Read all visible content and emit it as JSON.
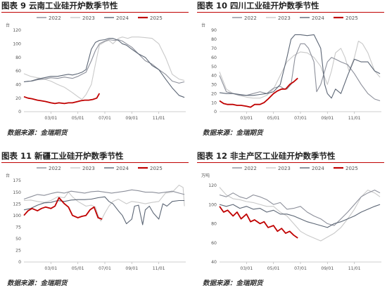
{
  "source_label": "数据来源：金瑞期货",
  "colors": {
    "y2022": "#8c8f9a",
    "y2023": "#c9c9c9",
    "y2024": "#5c6675",
    "y2025": "#c00000",
    "title_rule": "#c00000"
  },
  "chart_data": [
    {
      "type": "line",
      "title_prefix": "图表 9",
      "title": "云南工业硅开炉数季节性",
      "yunit": "台",
      "ylim": [
        0,
        120
      ],
      "yticks": [
        0,
        20,
        40,
        60,
        80,
        100,
        120
      ],
      "xticks": [
        "03/01",
        "05/01",
        "07/01",
        "09/01",
        "11/01"
      ],
      "series": [
        {
          "name": "2022",
          "x": [
            0,
            0.3,
            0.6,
            1.0,
            1.5,
            2.0,
            2.5,
            3.0,
            3.3,
            3.6,
            4.0,
            4.3,
            4.6,
            5.0,
            5.3,
            5.6,
            6.0,
            6.3,
            6.7,
            7.0,
            7.3,
            7.6,
            8.0,
            8.5,
            9.0,
            9.5,
            10.0,
            10.5,
            11.0,
            11.5,
            11.9
          ],
          "y": [
            44,
            45,
            45,
            47,
            48,
            50,
            49,
            51,
            50,
            49,
            52,
            55,
            58,
            75,
            90,
            100,
            104,
            106,
            105,
            106,
            104,
            100,
            95,
            85,
            75,
            70,
            62,
            55,
            45,
            42,
            44
          ]
        },
        {
          "name": "2023",
          "x": [
            0,
            0.5,
            1.0,
            1.5,
            2.0,
            2.5,
            3.0,
            3.3,
            3.6,
            4.0,
            4.3,
            4.6,
            5.0,
            5.3,
            5.6,
            6.0,
            6.3,
            6.6,
            7.0,
            7.3,
            7.7,
            8.0,
            8.5,
            9.0,
            9.5,
            10.0,
            10.5,
            11.0,
            11.5,
            11.9
          ],
          "y": [
            56,
            52,
            50,
            48,
            45,
            40,
            36,
            32,
            28,
            22,
            18,
            25,
            40,
            70,
            98,
            103,
            105,
            100,
            108,
            110,
            108,
            110,
            110,
            109,
            108,
            100,
            80,
            55,
            48,
            46
          ]
        },
        {
          "name": "2024",
          "x": [
            0,
            0.5,
            1.0,
            1.5,
            2.0,
            2.5,
            3.0,
            3.3,
            3.6,
            4.0,
            4.3,
            4.6,
            5.0,
            5.3,
            5.6,
            6.0,
            6.3,
            6.6,
            7.0,
            7.3,
            7.6,
            8.0,
            8.5,
            9.0,
            9.5,
            10.0,
            10.5,
            11.0,
            11.5,
            11.9
          ],
          "y": [
            44,
            45,
            48,
            50,
            52,
            52,
            54,
            55,
            54,
            56,
            58,
            62,
            92,
            102,
            105,
            106,
            108,
            108,
            105,
            100,
            98,
            92,
            85,
            80,
            68,
            62,
            48,
            35,
            24,
            21
          ]
        },
        {
          "name": "2025",
          "x": [
            0,
            0.3,
            0.6,
            1.0,
            1.3,
            1.6,
            2.0,
            2.3,
            2.6,
            3.0,
            3.3,
            3.6,
            4.0,
            4.2,
            4.5,
            4.8,
            5.1,
            5.4,
            5.6
          ],
          "y": [
            22,
            20,
            19,
            17,
            16,
            15,
            13,
            12,
            13,
            12,
            13,
            13,
            15,
            16,
            17,
            17,
            18,
            20,
            27
          ]
        }
      ]
    },
    {
      "type": "line",
      "title_prefix": "图表 10",
      "title": "四川工业硅开炉数季节性",
      "yunit": "台",
      "ylim": [
        0,
        90
      ],
      "yticks": [
        0,
        10,
        20,
        30,
        40,
        50,
        60,
        70,
        80,
        90
      ],
      "xticks": [
        "03/01",
        "05/01",
        "07/01",
        "09/01",
        "11/01"
      ],
      "series": [
        {
          "name": "2022",
          "x": [
            0,
            0.5,
            1.0,
            1.5,
            2.0,
            2.5,
            3.0,
            3.5,
            4.0,
            4.5,
            4.8,
            5.0,
            5.3,
            5.6,
            6.0,
            6.3,
            6.6,
            7.0,
            7.2,
            7.5,
            7.8,
            8.0,
            8.3,
            8.6,
            9.0,
            9.5,
            10.0,
            10.5,
            11.0,
            11.5,
            11.9
          ],
          "y": [
            40,
            22,
            20,
            18,
            18,
            20,
            22,
            20,
            26,
            28,
            25,
            25,
            30,
            60,
            75,
            75,
            70,
            55,
            22,
            30,
            45,
            55,
            60,
            58,
            55,
            52,
            42,
            30,
            20,
            14,
            12
          ]
        },
        {
          "name": "2023",
          "x": [
            0,
            0.5,
            1.0,
            1.5,
            2.0,
            2.5,
            3.0,
            3.5,
            4.0,
            4.5,
            5.0,
            5.5,
            6.0,
            6.5,
            7.0,
            7.5,
            8.0,
            8.3,
            8.6,
            9.0,
            9.3,
            9.6,
            10.0,
            10.3,
            10.6,
            11.0,
            11.5,
            11.9
          ],
          "y": [
            44,
            25,
            20,
            18,
            16,
            15,
            15,
            18,
            25,
            40,
            55,
            62,
            66,
            65,
            60,
            50,
            30,
            45,
            65,
            70,
            60,
            45,
            60,
            78,
            75,
            65,
            45,
            38
          ]
        },
        {
          "name": "2024",
          "x": [
            0,
            0.5,
            1.0,
            1.5,
            2.0,
            2.5,
            3.0,
            3.5,
            4.0,
            4.5,
            5.0,
            5.3,
            5.6,
            6.0,
            6.5,
            7.0,
            7.5,
            7.8,
            8.0,
            8.3,
            8.6,
            9.0,
            9.5,
            10.0,
            10.5,
            11.0,
            11.5,
            11.9
          ],
          "y": [
            21,
            20,
            20,
            19,
            18,
            18,
            19,
            20,
            22,
            30,
            60,
            80,
            85,
            85,
            84,
            85,
            70,
            30,
            20,
            15,
            25,
            20,
            40,
            58,
            55,
            55,
            45,
            42
          ]
        },
        {
          "name": "2025",
          "x": [
            0,
            0.3,
            0.6,
            1.0,
            1.3,
            1.6,
            2.0,
            2.3,
            2.6,
            3.0,
            3.3,
            3.6,
            4.0,
            4.3,
            4.6,
            4.9,
            5.2,
            5.5,
            5.8
          ],
          "y": [
            12,
            9,
            8,
            8,
            7,
            7,
            6,
            5,
            8,
            8,
            10,
            14,
            20,
            23,
            25,
            25,
            30,
            33,
            37
          ]
        }
      ]
    },
    {
      "type": "line",
      "title_prefix": "图表 11",
      "title": "新疆工业硅开炉数季节性",
      "yunit": "台",
      "ylim": [
        0,
        175
      ],
      "yticks": [
        0,
        25,
        50,
        75,
        100,
        125,
        150,
        175
      ],
      "xticks": [
        "03/01",
        "05/01",
        "07/01",
        "09/01",
        "11/01"
      ],
      "series": [
        {
          "name": "2022",
          "x": [
            0,
            0.5,
            1.0,
            1.5,
            2.0,
            2.5,
            3.0,
            3.5,
            4.0,
            4.5,
            5.0,
            5.5,
            6.0,
            6.5,
            7.0,
            7.5,
            8.0,
            8.5,
            9.0,
            9.5,
            10.0,
            10.5,
            11.0,
            11.5,
            11.9
          ],
          "y": [
            135,
            140,
            145,
            143,
            147,
            150,
            148,
            152,
            150,
            148,
            151,
            152,
            150,
            148,
            150,
            152,
            155,
            153,
            150,
            150,
            148,
            150,
            152,
            148,
            145
          ]
        },
        {
          "name": "2023",
          "x": [
            0,
            0.5,
            1.0,
            1.5,
            2.0,
            2.5,
            3.0,
            3.3,
            3.6,
            4.0,
            4.3,
            4.6,
            5.0,
            5.3,
            5.5,
            5.7,
            6.0,
            6.3,
            6.6,
            7.0,
            7.3,
            7.6,
            8.0,
            8.5,
            9.0,
            9.5,
            10.0,
            10.5,
            11.0,
            11.5,
            11.8,
            11.9
          ],
          "y": [
            132,
            133,
            130,
            128,
            132,
            140,
            138,
            150,
            140,
            130,
            125,
            120,
            122,
            118,
            100,
            88,
            105,
            120,
            130,
            135,
            130,
            125,
            130,
            128,
            125,
            128,
            130,
            148,
            150,
            165,
            160,
            120
          ]
        },
        {
          "name": "2024",
          "x": [
            0,
            0.5,
            1.0,
            1.5,
            2.0,
            2.5,
            3.0,
            3.5,
            4.0,
            4.5,
            5.0,
            5.5,
            6.0,
            6.3,
            6.6,
            7.0,
            7.3,
            7.6,
            8.0,
            8.2,
            8.5,
            8.8,
            9.0,
            9.3,
            9.6,
            10.0,
            10.3,
            10.6,
            11.0,
            11.5,
            11.9
          ],
          "y": [
            112,
            115,
            122,
            127,
            128,
            132,
            130,
            133,
            134,
            134,
            135,
            138,
            140,
            130,
            125,
            110,
            100,
            82,
            92,
            120,
            122,
            80,
            112,
            120,
            105,
            92,
            125,
            120,
            130,
            132,
            132
          ]
        },
        {
          "name": "2025",
          "x": [
            0,
            0.3,
            0.6,
            1.0,
            1.3,
            1.6,
            2.0,
            2.3,
            2.6,
            3.0,
            3.3,
            3.6,
            4.0,
            4.3,
            4.6,
            4.9,
            5.2,
            5.5,
            5.8
          ],
          "y": [
            100,
            110,
            115,
            110,
            115,
            118,
            115,
            120,
            138,
            125,
            118,
            100,
            95,
            98,
            100,
            112,
            118,
            95,
            92
          ]
        }
      ]
    },
    {
      "type": "line",
      "title_prefix": "图表 12",
      "title": "非主产区工业硅开炉数季节性",
      "yunit": "万吨",
      "ylim": [
        40,
        125
      ],
      "yticks": [
        40,
        60,
        80,
        100,
        120
      ],
      "xticks": [
        "03/01",
        "05/01",
        "07/01",
        "09/01",
        "11/01"
      ],
      "series": [
        {
          "name": "2022",
          "x": [
            0,
            0.5,
            1.0,
            1.5,
            2.0,
            2.5,
            3.0,
            3.5,
            4.0,
            4.5,
            5.0,
            5.5,
            6.0,
            6.5,
            7.0,
            7.5,
            8.0,
            8.5,
            9.0,
            9.5,
            10.0,
            10.5,
            11.0,
            11.5,
            11.9
          ],
          "y": [
            110,
            108,
            112,
            108,
            106,
            110,
            108,
            105,
            100,
            102,
            95,
            96,
            98,
            92,
            88,
            85,
            80,
            78,
            85,
            92,
            100,
            108,
            112,
            115,
            112
          ]
        },
        {
          "name": "2023",
          "x": [
            0,
            0.5,
            1.0,
            1.5,
            2.0,
            2.5,
            3.0,
            3.5,
            4.0,
            4.5,
            5.0,
            5.5,
            6.0,
            6.5,
            7.0,
            7.5,
            8.0,
            8.5,
            9.0,
            9.5,
            10.0,
            10.5,
            11.0,
            11.5,
            11.9
          ],
          "y": [
            118,
            110,
            106,
            105,
            103,
            102,
            100,
            98,
            98,
            92,
            88,
            80,
            72,
            68,
            65,
            62,
            66,
            70,
            76,
            85,
            95,
            108,
            115,
            112,
            108
          ]
        },
        {
          "name": "2024",
          "x": [
            0,
            0.5,
            1.0,
            1.5,
            2.0,
            2.5,
            3.0,
            3.5,
            4.0,
            4.5,
            5.0,
            5.5,
            6.0,
            6.5,
            7.0,
            7.5,
            8.0,
            8.5,
            9.0,
            9.5,
            10.0,
            10.5,
            11.0,
            11.5,
            11.9
          ],
          "y": [
            100,
            98,
            100,
            96,
            98,
            95,
            96,
            92,
            94,
            90,
            90,
            88,
            85,
            82,
            80,
            78,
            76,
            80,
            82,
            85,
            88,
            92,
            95,
            98,
            100
          ]
        },
        {
          "name": "2025",
          "x": [
            0,
            0.3,
            0.6,
            1.0,
            1.3,
            1.6,
            2.0,
            2.3,
            2.6,
            3.0,
            3.3,
            3.6,
            4.0,
            4.3,
            4.6,
            4.9,
            5.2,
            5.5,
            5.8
          ],
          "y": [
            98,
            92,
            94,
            88,
            92,
            85,
            90,
            82,
            84,
            80,
            82,
            76,
            78,
            72,
            75,
            70,
            72,
            68,
            65
          ]
        }
      ]
    }
  ]
}
